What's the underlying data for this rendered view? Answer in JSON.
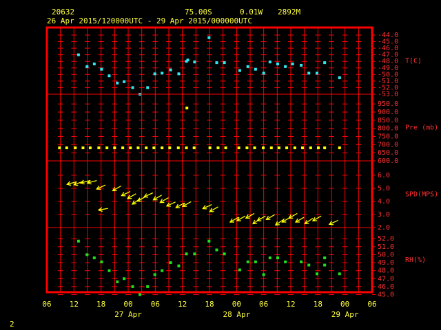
{
  "header": {
    "station": "20632",
    "lat": "75.00S",
    "lon": "0.01W",
    "elev": "2892M",
    "period": "26 Apr 2015/120000UTC - 29 Apr 2015/000000UTC"
  },
  "footer": "2",
  "chart_data": [
    {
      "type": "scatter",
      "ylabel": "T(C)",
      "color": "#30e8f0",
      "ylim": [
        -53,
        -42.85
      ],
      "yticks": [
        {
          "value": -44,
          "label": "-44.0"
        },
        {
          "value": -45,
          "label": "-45.0"
        },
        {
          "value": -46,
          "label": "-46.0"
        },
        {
          "value": -47,
          "label": "-47.0"
        },
        {
          "value": -48,
          "label": "-48.0"
        },
        {
          "value": -49,
          "label": "-49.0"
        },
        {
          "value": -50,
          "label": "-50.0"
        },
        {
          "value": -51,
          "label": "-51.0"
        },
        {
          "value": -52,
          "label": "-52.0"
        },
        {
          "value": -53,
          "label": "-53.0"
        }
      ],
      "x": [
        7.0,
        8.9,
        10.5,
        12.1,
        13.8,
        15.6,
        17.1,
        19.0,
        20.6,
        22.3,
        23.9,
        25.5,
        27.4,
        29.2,
        30.9,
        31.2,
        32.7,
        35.9,
        37.6,
        39.3,
        42.7,
        44.5,
        46.2,
        48.0,
        49.4,
        51.1,
        52.8,
        54.4,
        56.3,
        58.0,
        59.8,
        61.5,
        64.8
      ],
      "values": [
        -47.0,
        -48.8,
        -48.4,
        -49.2,
        -50.2,
        -51.3,
        -51.1,
        -52.0,
        -53.0,
        -52.0,
        -49.9,
        -49.8,
        -49.3,
        -49.9,
        -48.0,
        -47.8,
        -48.1,
        -44.4,
        -48.2,
        -48.2,
        -49.4,
        -48.8,
        -49.2,
        -49.8,
        -48.1,
        -48.4,
        -48.8,
        -48.4,
        -48.6,
        -49.8,
        -49.8,
        -48.2,
        -50.5
      ]
    },
    {
      "type": "scatter",
      "ylabel": "Pre (mb)",
      "color": "#ffff00",
      "ylim": [
        600,
        1010
      ],
      "yticks": [
        {
          "value": 950,
          "label": "950.0"
        },
        {
          "value": 900,
          "label": "900.0"
        },
        {
          "value": 850,
          "label": "850.0"
        },
        {
          "value": 800,
          "label": "800.0"
        },
        {
          "value": 750,
          "label": "750.0"
        },
        {
          "value": 700,
          "label": "700.0"
        },
        {
          "value": 650,
          "label": "650.0"
        },
        {
          "value": 600,
          "label": "600.0"
        }
      ],
      "x": [
        2.8,
        4.4,
        6.3,
        8.0,
        9.6,
        11.5,
        13.3,
        15.0,
        16.8,
        18.5,
        20.2,
        22.0,
        23.7,
        25.5,
        27.2,
        29.1,
        30.9,
        31.0,
        32.6,
        36.1,
        37.9,
        39.6,
        42.5,
        44.3,
        46.0,
        47.9,
        49.7,
        51.4,
        53.1,
        54.9,
        56.6,
        58.4,
        60.1,
        61.5,
        64.8
      ],
      "values": [
        680,
        680,
        680,
        680,
        680,
        680,
        680,
        680,
        680,
        680,
        680,
        680,
        680,
        680,
        680,
        680,
        680,
        925,
        680,
        680,
        680,
        680,
        680,
        680,
        680,
        680,
        680,
        680,
        680,
        680,
        680,
        680,
        680,
        680,
        680
      ]
    },
    {
      "type": "vector",
      "ylabel": "SPD(MPS)",
      "color": "#ffff00",
      "ylim": [
        2,
        7.1
      ],
      "yticks": [
        {
          "value": 6,
          "label": "6.0"
        },
        {
          "value": 5,
          "label": "5.0"
        },
        {
          "value": 4,
          "label": "4.0"
        },
        {
          "value": 3,
          "label": "3.0"
        },
        {
          "value": 2,
          "label": "2.0"
        }
      ],
      "x": [
        5.5,
        7.0,
        8.5,
        10.0,
        12.0,
        12.5,
        15.5,
        17.5,
        18.8,
        19.8,
        21.0,
        22.5,
        24.5,
        26.0,
        27.5,
        29.5,
        31.0,
        35.5,
        37.0,
        41.5,
        43.0,
        45.0,
        46.5,
        47.5,
        49.5,
        51.5,
        53.0,
        54.5,
        56.0,
        58.0,
        59.8,
        63.5
      ],
      "values": [
        5.4,
        5.4,
        5.5,
        5.5,
        5.1,
        3.4,
        5.0,
        4.6,
        4.4,
        4.0,
        4.2,
        4.5,
        4.3,
        4.1,
        3.8,
        3.7,
        3.8,
        3.6,
        3.4,
        2.6,
        2.7,
        2.9,
        2.5,
        2.7,
        2.8,
        2.4,
        2.6,
        2.9,
        2.6,
        2.5,
        2.7,
        2.4
      ],
      "directions": [
        255,
        250,
        255,
        255,
        245,
        260,
        240,
        245,
        240,
        235,
        240,
        245,
        240,
        240,
        245,
        240,
        240,
        245,
        240,
        240,
        240,
        240,
        235,
        240,
        240,
        235,
        240,
        240,
        240,
        235,
        240,
        245
      ]
    },
    {
      "type": "scatter",
      "ylabel": "RH(%)",
      "color": "#20e020",
      "ylim": [
        45.3,
        53.4
      ],
      "yticks": [
        {
          "value": 52,
          "label": "52.0"
        },
        {
          "value": 51,
          "label": "51.0"
        },
        {
          "value": 50,
          "label": "50.0"
        },
        {
          "value": 49,
          "label": "49.0"
        },
        {
          "value": 48,
          "label": "48.0"
        },
        {
          "value": 47,
          "label": "47.0"
        },
        {
          "value": 46,
          "label": "46.0"
        },
        {
          "value": 45,
          "label": "45.0"
        }
      ],
      "x": [
        7.0,
        8.9,
        10.5,
        12.1,
        13.8,
        15.6,
        17.1,
        19.0,
        20.6,
        22.3,
        23.9,
        25.5,
        27.4,
        29.2,
        30.9,
        32.7,
        35.9,
        37.6,
        39.3,
        42.7,
        44.5,
        46.2,
        48.0,
        49.4,
        51.1,
        52.8,
        56.3,
        58.0,
        59.8,
        61.5,
        61.5,
        64.8
      ],
      "values": [
        51.7,
        50.0,
        49.6,
        49.1,
        48.0,
        46.6,
        47.0,
        46.0,
        45.0,
        46.0,
        47.5,
        48.0,
        49.0,
        48.6,
        50.1,
        50.1,
        51.7,
        50.6,
        50.1,
        48.1,
        49.1,
        49.1,
        47.5,
        49.6,
        49.6,
        49.1,
        49.1,
        48.7,
        47.6,
        49.6,
        48.7,
        47.6
      ],
      "xlim": [
        0,
        72
      ],
      "xticks": [
        {
          "value": 0,
          "label": "06"
        },
        {
          "value": 6,
          "label": "12"
        },
        {
          "value": 12,
          "label": "18"
        },
        {
          "value": 18,
          "label": "00"
        },
        {
          "value": 24,
          "label": "06"
        },
        {
          "value": 30,
          "label": "12"
        },
        {
          "value": 36,
          "label": "18"
        },
        {
          "value": 42,
          "label": "00"
        },
        {
          "value": 48,
          "label": "06"
        },
        {
          "value": 54,
          "label": "12"
        },
        {
          "value": 60,
          "label": "18"
        },
        {
          "value": 66,
          "label": "00"
        },
        {
          "value": 72,
          "label": "06"
        }
      ],
      "minor_xticks": [
        3,
        9,
        15,
        21,
        27,
        33,
        39,
        45,
        51,
        57,
        63,
        69
      ],
      "xdates": [
        {
          "value": 18,
          "label": "27 Apr"
        },
        {
          "value": 42,
          "label": "28 Apr"
        },
        {
          "value": 66,
          "label": "29 Apr"
        }
      ]
    }
  ]
}
